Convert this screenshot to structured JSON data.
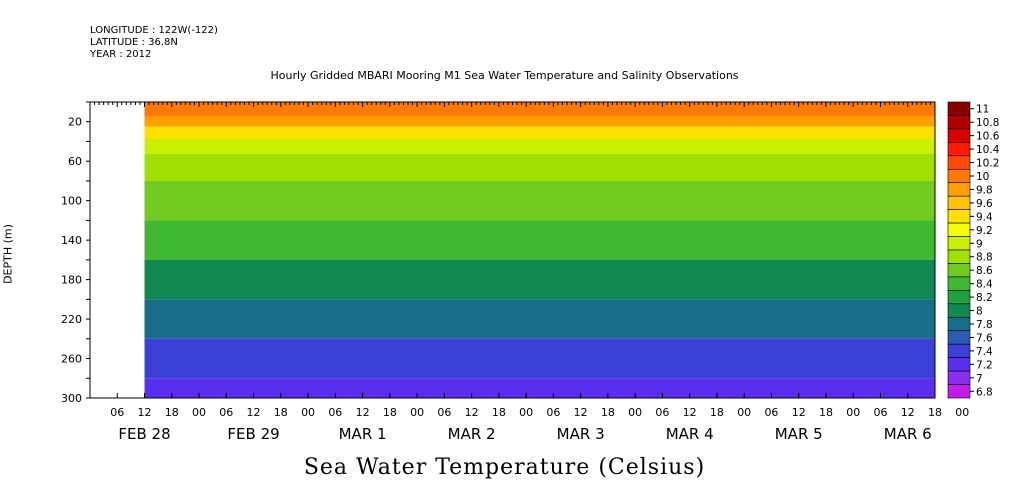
{
  "header": {
    "longitude": "LONGITUDE : 122W(-122)",
    "latitude": "LATITUDE : 36.8N",
    "year": "YEAR : 2012"
  },
  "chart_data": {
    "type": "heatmap",
    "title": "Hourly Gridded MBARI Mooring M1 Sea Water Temperature and Salinity Observations",
    "footer_label": "Sea Water Temperature (Celsius)",
    "ylabel": "DEPTH (m)",
    "ylim": [
      300,
      0
    ],
    "yticks": [
      20,
      60,
      100,
      140,
      180,
      220,
      260,
      300
    ],
    "x_hour_ticks": [
      "06",
      "12",
      "18",
      "00",
      "06",
      "12",
      "18",
      "00",
      "06",
      "12",
      "18",
      "00",
      "06",
      "12",
      "18",
      "00",
      "06",
      "12",
      "18",
      "00",
      "06",
      "12",
      "18",
      "00",
      "06",
      "12",
      "18",
      "00",
      "06",
      "12",
      "18",
      "00"
    ],
    "x_day_labels": [
      "FEB 28",
      "FEB 29",
      "MAR  1",
      "MAR  2",
      "MAR  3",
      "MAR  4",
      "MAR  5",
      "MAR  6"
    ],
    "colorbar": {
      "labels": [
        "11",
        "10.8",
        "10.6",
        "10.4",
        "10.2",
        "10",
        "9.8",
        "9.6",
        "9.4",
        "9.2",
        "9",
        "8.8",
        "8.6",
        "8.4",
        "8.2",
        "8",
        "7.8",
        "7.6",
        "7.4",
        "7.2",
        "7",
        "6.8"
      ],
      "colors": [
        "#8a0000",
        "#b00000",
        "#d80000",
        "#ff1a00",
        "#ff4a00",
        "#ff7a00",
        "#ffa000",
        "#ffc400",
        "#ffe000",
        "#f4ff00",
        "#c8f000",
        "#a0e000",
        "#70cc20",
        "#40b830",
        "#20a040",
        "#108a50",
        "#186e88",
        "#2a5cb4",
        "#3a40d8",
        "#5a2ef0",
        "#8a2ef0",
        "#c01ee8"
      ]
    },
    "profile": [
      {
        "depth": 10,
        "temp": 10.0
      },
      {
        "depth": 20,
        "temp": 9.8
      },
      {
        "depth": 30,
        "temp": 9.4
      },
      {
        "depth": 45,
        "temp": 9.0
      },
      {
        "depth": 60,
        "temp": 8.8
      },
      {
        "depth": 100,
        "temp": 8.6
      },
      {
        "depth": 140,
        "temp": 8.4
      },
      {
        "depth": 180,
        "temp": 8.1
      },
      {
        "depth": 220,
        "temp": 7.8
      },
      {
        "depth": 260,
        "temp": 7.5
      },
      {
        "depth": 300,
        "temp": 7.2
      }
    ],
    "data_start_hour": 12,
    "total_hours": 186
  }
}
